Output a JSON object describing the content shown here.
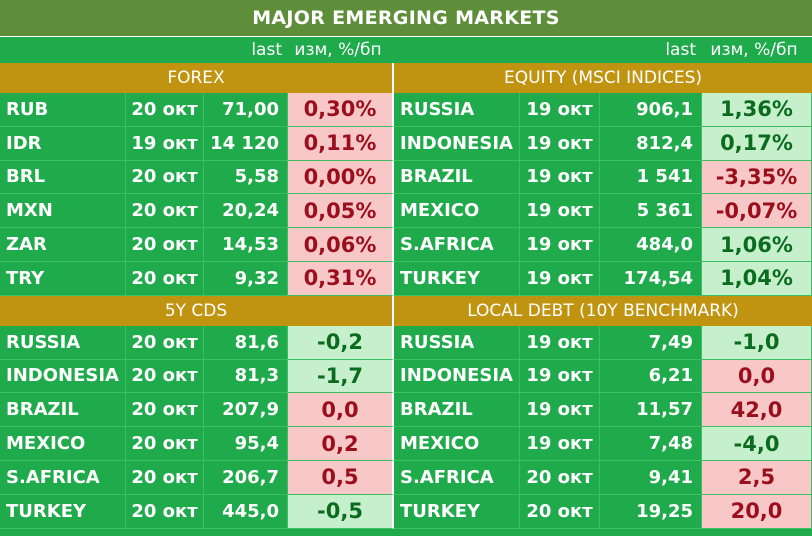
{
  "title": "MAJOR   EMERGING MARKETS",
  "column_headers": {
    "left_last": "last",
    "left_change": "изм, %/бп",
    "right_last": "last",
    "right_change": "изм, %/бп"
  },
  "colors": {
    "header_green": "#5e8e3a",
    "cell_green": "#1faa4b",
    "section_gold": "#c09411",
    "negative_fill": "#f8c8c8",
    "negative_text": "#9b0f1c",
    "positive_fill": "#c6efcc",
    "positive_text": "#0b6b1e"
  },
  "blocks": [
    {
      "left_title": "FOREX",
      "right_title": "EQUITY (MSCI INDICES)",
      "rows": [
        {
          "l": {
            "name": "RUB",
            "date": "20 окт",
            "last": "71,00",
            "chg": "0,30%",
            "tone": "neg"
          },
          "r": {
            "name": "RUSSIA",
            "date": "19 окт",
            "last": "906,1",
            "chg": "1,36%",
            "tone": "pos"
          }
        },
        {
          "l": {
            "name": "IDR",
            "date": "19 окт",
            "last": "14 120",
            "chg": "0,11%",
            "tone": "neg"
          },
          "r": {
            "name": "INDONESIA",
            "date": "19 окт",
            "last": "812,4",
            "chg": "0,17%",
            "tone": "pos"
          }
        },
        {
          "l": {
            "name": "BRL",
            "date": "20 окт",
            "last": "5,58",
            "chg": "0,00%",
            "tone": "neg"
          },
          "r": {
            "name": "BRAZIL",
            "date": "19 окт",
            "last": "1 541",
            "chg": "-3,35%",
            "tone": "neg"
          }
        },
        {
          "l": {
            "name": "MXN",
            "date": "20 окт",
            "last": "20,24",
            "chg": "0,05%",
            "tone": "neg"
          },
          "r": {
            "name": "MEXICO",
            "date": "19 окт",
            "last": "5 361",
            "chg": "-0,07%",
            "tone": "neg"
          }
        },
        {
          "l": {
            "name": "ZAR",
            "date": "20 окт",
            "last": "14,53",
            "chg": "0,06%",
            "tone": "neg"
          },
          "r": {
            "name": "S.AFRICA",
            "date": "19 окт",
            "last": "484,0",
            "chg": "1,06%",
            "tone": "pos"
          }
        },
        {
          "l": {
            "name": "TRY",
            "date": "20 окт",
            "last": "9,32",
            "chg": "0,31%",
            "tone": "neg"
          },
          "r": {
            "name": "TURKEY",
            "date": "19 окт",
            "last": "174,54",
            "chg": "1,04%",
            "tone": "pos"
          }
        }
      ]
    },
    {
      "left_title": "5Y CDS",
      "right_title": "LOCAL DEBT (10Y BENCHMARK)",
      "rows": [
        {
          "l": {
            "name": "RUSSIA",
            "date": "20 окт",
            "last": "81,6",
            "chg": "-0,2",
            "tone": "pos"
          },
          "r": {
            "name": "RUSSIA",
            "date": "19 окт",
            "last": "7,49",
            "chg": "-1,0",
            "tone": "pos"
          }
        },
        {
          "l": {
            "name": "INDONESIA",
            "date": "20 окт",
            "last": "81,3",
            "chg": "-1,7",
            "tone": "pos"
          },
          "r": {
            "name": "INDONESIA",
            "date": "19 окт",
            "last": "6,21",
            "chg": "0,0",
            "tone": "neg"
          }
        },
        {
          "l": {
            "name": "BRAZIL",
            "date": "20 окт",
            "last": "207,9",
            "chg": "0,0",
            "tone": "neg"
          },
          "r": {
            "name": "BRAZIL",
            "date": "19 окт",
            "last": "11,57",
            "chg": "42,0",
            "tone": "neg"
          }
        },
        {
          "l": {
            "name": "MEXICO",
            "date": "20 окт",
            "last": "95,4",
            "chg": "0,2",
            "tone": "neg"
          },
          "r": {
            "name": "MEXICO",
            "date": "19 окт",
            "last": "7,48",
            "chg": "-4,0",
            "tone": "pos"
          }
        },
        {
          "l": {
            "name": "S.AFRICA",
            "date": "20 окт",
            "last": "206,7",
            "chg": "0,5",
            "tone": "neg"
          },
          "r": {
            "name": "S.AFRICA",
            "date": "20 окт",
            "last": "9,41",
            "chg": "2,5",
            "tone": "neg"
          }
        },
        {
          "l": {
            "name": "TURKEY",
            "date": "20 окт",
            "last": "445,0",
            "chg": "-0,5",
            "tone": "pos"
          },
          "r": {
            "name": "TURKEY",
            "date": "20 окт",
            "last": "19,25",
            "chg": "20,0",
            "tone": "neg"
          }
        }
      ]
    }
  ]
}
